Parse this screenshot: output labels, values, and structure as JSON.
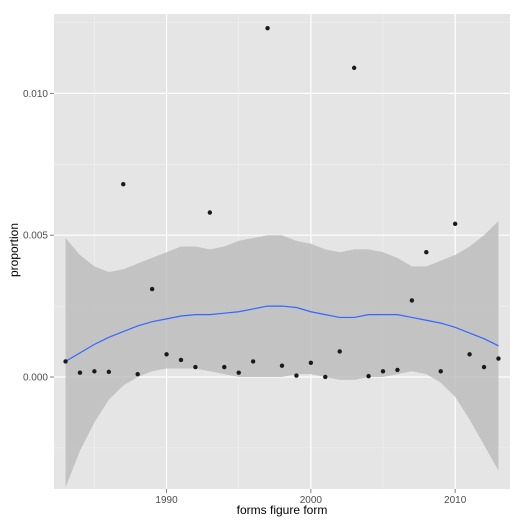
{
  "chart_data": {
    "type": "scatter",
    "xlabel": "forms figure form",
    "ylabel": "proportion",
    "xlim": [
      1982.2,
      2013.8
    ],
    "ylim": [
      -0.00395,
      0.0128
    ],
    "x_ticks": [
      1990,
      2000,
      2010
    ],
    "x_tick_labels": [
      "1990",
      "2000",
      "2010"
    ],
    "y_ticks": [
      0.0,
      0.005,
      0.01
    ],
    "y_tick_labels": [
      "0.000",
      "0.005",
      "0.010"
    ],
    "grid": true,
    "legend": "none",
    "series": [
      {
        "values": [
          {
            "x": 1983,
            "y": 0.00055
          },
          {
            "x": 1984,
            "y": 0.00015
          },
          {
            "x": 1985,
            "y": 0.0002
          },
          {
            "x": 1986,
            "y": 0.00018
          },
          {
            "x": 1987,
            "y": 0.0068
          },
          {
            "x": 1988,
            "y": 0.0001
          },
          {
            "x": 1989,
            "y": 0.0031
          },
          {
            "x": 1990,
            "y": 0.0008
          },
          {
            "x": 1991,
            "y": 0.0006
          },
          {
            "x": 1992,
            "y": 0.00035
          },
          {
            "x": 1993,
            "y": 0.0058
          },
          {
            "x": 1994,
            "y": 0.00035
          },
          {
            "x": 1995,
            "y": 0.00015
          },
          {
            "x": 1996,
            "y": 0.00055
          },
          {
            "x": 1997,
            "y": 0.0123
          },
          {
            "x": 1998,
            "y": 0.0004
          },
          {
            "x": 1999,
            "y": 5e-05
          },
          {
            "x": 2000,
            "y": 0.0005
          },
          {
            "x": 2001,
            "y": 0.0
          },
          {
            "x": 2002,
            "y": 0.0009
          },
          {
            "x": 2003,
            "y": 0.0109
          },
          {
            "x": 2004,
            "y": 3e-05
          },
          {
            "x": 2005,
            "y": 0.0002
          },
          {
            "x": 2006,
            "y": 0.00025
          },
          {
            "x": 2007,
            "y": 0.0027
          },
          {
            "x": 2008,
            "y": 0.0044
          },
          {
            "x": 2009,
            "y": 0.0002
          },
          {
            "x": 2010,
            "y": 0.0054
          },
          {
            "x": 2011,
            "y": 0.0008
          },
          {
            "x": 2012,
            "y": 0.00035
          },
          {
            "x": 2013,
            "y": 0.00065
          }
        ]
      }
    ],
    "smooth": {
      "x": [
        1983,
        1984,
        1985,
        1986,
        1987,
        1988,
        1989,
        1990,
        1991,
        1992,
        1993,
        1994,
        1995,
        1996,
        1997,
        1998,
        1999,
        2000,
        2001,
        2002,
        2003,
        2004,
        2005,
        2006,
        2007,
        2008,
        2009,
        2010,
        2011,
        2012,
        2013
      ],
      "fit": [
        0.00055,
        0.00085,
        0.00115,
        0.0014,
        0.0016,
        0.0018,
        0.00195,
        0.00205,
        0.00215,
        0.0022,
        0.0022,
        0.00225,
        0.0023,
        0.0024,
        0.0025,
        0.0025,
        0.00245,
        0.0023,
        0.0022,
        0.0021,
        0.0021,
        0.0022,
        0.0022,
        0.0022,
        0.0021,
        0.002,
        0.0019,
        0.00175,
        0.00155,
        0.00135,
        0.0011
      ],
      "upper": [
        0.0049,
        0.0043,
        0.0039,
        0.0037,
        0.0038,
        0.004,
        0.0042,
        0.0044,
        0.0046,
        0.0046,
        0.0045,
        0.0046,
        0.0048,
        0.0049,
        0.005,
        0.005,
        0.0048,
        0.0047,
        0.0045,
        0.0044,
        0.0045,
        0.0045,
        0.0044,
        0.0042,
        0.0039,
        0.0039,
        0.0041,
        0.0043,
        0.0046,
        0.005,
        0.0055
      ],
      "lower": [
        -0.0039,
        -0.0026,
        -0.0016,
        -0.0008,
        -0.0003,
        0.0,
        0.0002,
        0.0003,
        0.0003,
        0.0003,
        0.0002,
        0.0001,
        0.0,
        0.0,
        0.0,
        0.0,
        0.0001,
        0.0001,
        0.0,
        -0.0001,
        -0.0001,
        0.0,
        0.0,
        0.0001,
        0.0002,
        0.0001,
        -0.0002,
        -0.0007,
        -0.0015,
        -0.0024,
        -0.0033
      ]
    },
    "colors": {
      "panel": "#e5e5e5",
      "grid_major": "#ffffff",
      "grid_minor": "#f2f2f2",
      "band": "#bdbdbd",
      "line": "#3366ff",
      "point": "#1a1a1a"
    }
  }
}
